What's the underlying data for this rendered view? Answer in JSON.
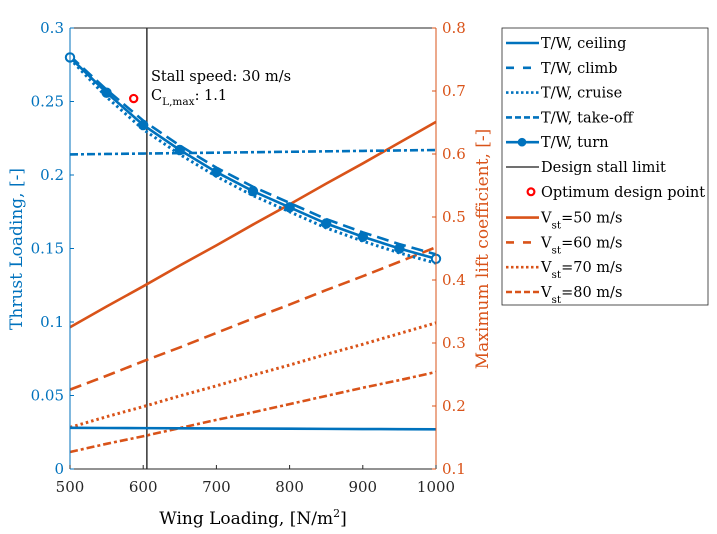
{
  "chart_data": {
    "type": "line",
    "title": "",
    "xlabel": "Wing Loading, [N/m",
    "xlabel_sup": "2",
    "xlabel_end": "]",
    "ylabel_left": "Thrust Loading, [-]",
    "ylabel_right": "Maximum lift coefficient, [-]",
    "xlim": [
      500,
      1000
    ],
    "ylim_left": [
      0,
      0.3
    ],
    "ylim_right": [
      0.1,
      0.8
    ],
    "x_ticks": [
      "500",
      "600",
      "700",
      "800",
      "900",
      "1000"
    ],
    "x_tick_values": [
      500,
      600,
      700,
      800,
      900,
      1000
    ],
    "y_left_ticks": [
      "0",
      "0.05",
      "0.1",
      "0.15",
      "0.2",
      "0.25",
      "0.3"
    ],
    "y_left_tick_values": [
      0,
      0.05,
      0.1,
      0.15,
      0.2,
      0.25,
      0.3
    ],
    "y_right_ticks": [
      "0.1",
      "0.2",
      "0.3",
      "0.4",
      "0.5",
      "0.6",
      "0.7",
      "0.8"
    ],
    "y_right_tick_values": [
      0.1,
      0.2,
      0.3,
      0.4,
      0.5,
      0.6,
      0.7,
      0.8
    ],
    "grid": false,
    "legend_position": "outside-right",
    "colors": {
      "blue": "#0072BD",
      "orange": "#D95319",
      "stall": "#404040",
      "optimum": "#ff0000"
    },
    "x": [
      500,
      550,
      600,
      650,
      700,
      750,
      800,
      850,
      900,
      950,
      1000
    ],
    "series": [
      {
        "name": "T/W, ceiling",
        "axis": "left",
        "style": "solid",
        "color": "#0072BD",
        "values": [
          0.028,
          0.0279,
          0.0278,
          0.0277,
          0.0276,
          0.0275,
          0.0274,
          0.0273,
          0.0272,
          0.0271,
          0.027
        ]
      },
      {
        "name": "T/W, climb",
        "axis": "left",
        "style": "dashed",
        "color": "#0072BD",
        "values": [
          0.281,
          0.258,
          0.237,
          0.22,
          0.205,
          0.192,
          0.181,
          0.17,
          0.161,
          0.153,
          0.146
        ]
      },
      {
        "name": "T/W, cruise",
        "axis": "left",
        "style": "dotted",
        "color": "#0072BD",
        "values": [
          0.279,
          0.253,
          0.231,
          0.214,
          0.199,
          0.186,
          0.175,
          0.164,
          0.155,
          0.147,
          0.14
        ]
      },
      {
        "name": "T/W, take-off",
        "axis": "left",
        "style": "dashdot",
        "color": "#0072BD",
        "values": [
          0.214,
          0.2143,
          0.2146,
          0.2149,
          0.2152,
          0.2155,
          0.2158,
          0.2161,
          0.2164,
          0.2167,
          0.217
        ]
      },
      {
        "name": "T/W, turn",
        "axis": "left",
        "style": "solid-marker",
        "color": "#0072BD",
        "values": [
          0.28,
          0.256,
          0.234,
          0.217,
          0.202,
          0.189,
          0.178,
          0.167,
          0.158,
          0.15,
          0.143
        ]
      },
      {
        "name": "V_st=50 m/s",
        "axis": "right",
        "style": "solid",
        "color": "#D95319",
        "values": [
          0.325,
          0.358,
          0.39,
          0.423,
          0.455,
          0.488,
          0.52,
          0.553,
          0.585,
          0.618,
          0.651
        ]
      },
      {
        "name": "V_st=60 m/s",
        "axis": "right",
        "style": "dashed",
        "color": "#D95319",
        "values": [
          0.226,
          0.248,
          0.271,
          0.293,
          0.316,
          0.339,
          0.361,
          0.384,
          0.406,
          0.429,
          0.452
        ]
      },
      {
        "name": "V_st=70 m/s",
        "axis": "right",
        "style": "dotted",
        "color": "#D95319",
        "values": [
          0.166,
          0.183,
          0.199,
          0.216,
          0.232,
          0.249,
          0.265,
          0.282,
          0.298,
          0.315,
          0.332
        ]
      },
      {
        "name": "V_st=80 m/s",
        "axis": "right",
        "style": "dashdot",
        "color": "#D95319",
        "values": [
          0.127,
          0.14,
          0.152,
          0.165,
          0.178,
          0.19,
          0.203,
          0.216,
          0.229,
          0.241,
          0.254
        ]
      }
    ],
    "stall_limit": {
      "name": "Design stall limit",
      "x": 605
    },
    "optimum_point": {
      "name": "Optimum design point",
      "x": 587,
      "y": 0.252
    },
    "annotation": {
      "line1": "Stall speed: 30 m/s",
      "line2_main": "C",
      "line2_sub": "L,max",
      "line2_end": ": 1.1"
    },
    "legend": [
      {
        "label": "T/W, ceiling",
        "sub": "",
        "rest": ""
      },
      {
        "label": "T/W, climb",
        "sub": "",
        "rest": ""
      },
      {
        "label": "T/W, cruise",
        "sub": "",
        "rest": ""
      },
      {
        "label": "T/W, take-off",
        "sub": "",
        "rest": ""
      },
      {
        "label": "T/W, turn",
        "sub": "",
        "rest": ""
      },
      {
        "label": "Design stall limit",
        "sub": "",
        "rest": ""
      },
      {
        "label": "Optimum design point",
        "sub": "",
        "rest": ""
      },
      {
        "label": "V",
        "sub": "st",
        "rest": "=50 m/s"
      },
      {
        "label": "V",
        "sub": "st",
        "rest": "=60 m/s"
      },
      {
        "label": "V",
        "sub": "st",
        "rest": "=70 m/s"
      },
      {
        "label": "V",
        "sub": "st",
        "rest": "=80 m/s"
      }
    ]
  }
}
